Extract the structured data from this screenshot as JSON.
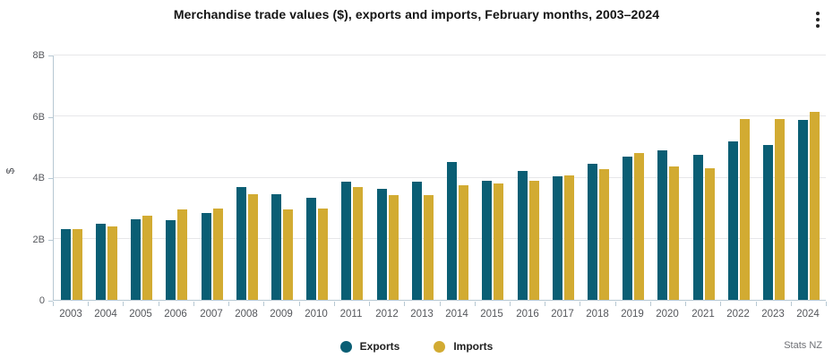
{
  "header": {
    "title": "Merchandise trade values ($), exports and imports, February months, 2003–2024",
    "menu_icon": "kebab-vertical"
  },
  "chart_data": {
    "type": "bar",
    "title": "Merchandise trade values ($), exports and imports, February months, 2003–2024",
    "xlabel": "",
    "ylabel": "$",
    "ylim": [
      0,
      8
    ],
    "yunit": "B",
    "grid": true,
    "legend_position": "bottom",
    "yticks": [
      {
        "label": "0",
        "value": 0
      },
      {
        "label": "2B",
        "value": 2
      },
      {
        "label": "4B",
        "value": 4
      },
      {
        "label": "6B",
        "value": 6
      },
      {
        "label": "8B",
        "value": 8
      }
    ],
    "categories": [
      "2003",
      "2004",
      "2005",
      "2006",
      "2007",
      "2008",
      "2009",
      "2010",
      "2011",
      "2012",
      "2013",
      "2014",
      "2015",
      "2016",
      "2017",
      "2018",
      "2019",
      "2020",
      "2021",
      "2022",
      "2023",
      "2024"
    ],
    "series": [
      {
        "name": "Exports",
        "color": "#0a5e74",
        "values": [
          2.31,
          2.5,
          2.65,
          2.61,
          2.85,
          3.7,
          3.45,
          3.33,
          3.86,
          3.62,
          3.88,
          4.52,
          3.9,
          4.23,
          4.04,
          4.45,
          4.7,
          4.9,
          4.76,
          5.19,
          5.08,
          5.9
        ]
      },
      {
        "name": "Imports",
        "color": "#d2ab32",
        "values": [
          2.32,
          2.41,
          2.76,
          2.96,
          3.0,
          3.45,
          2.97,
          3.0,
          3.68,
          3.42,
          3.44,
          3.74,
          3.8,
          3.89,
          4.08,
          4.27,
          4.82,
          4.36,
          4.3,
          5.92,
          5.93,
          6.14
        ]
      }
    ]
  },
  "footer": {
    "attribution": "Stats NZ"
  },
  "colors": {
    "exports": "#0a5e74",
    "imports": "#d2ab32",
    "axis_line": "#b7c8d3",
    "gridline": "#e7e7e9",
    "tick_label": "#55575c",
    "title": "#141414"
  }
}
